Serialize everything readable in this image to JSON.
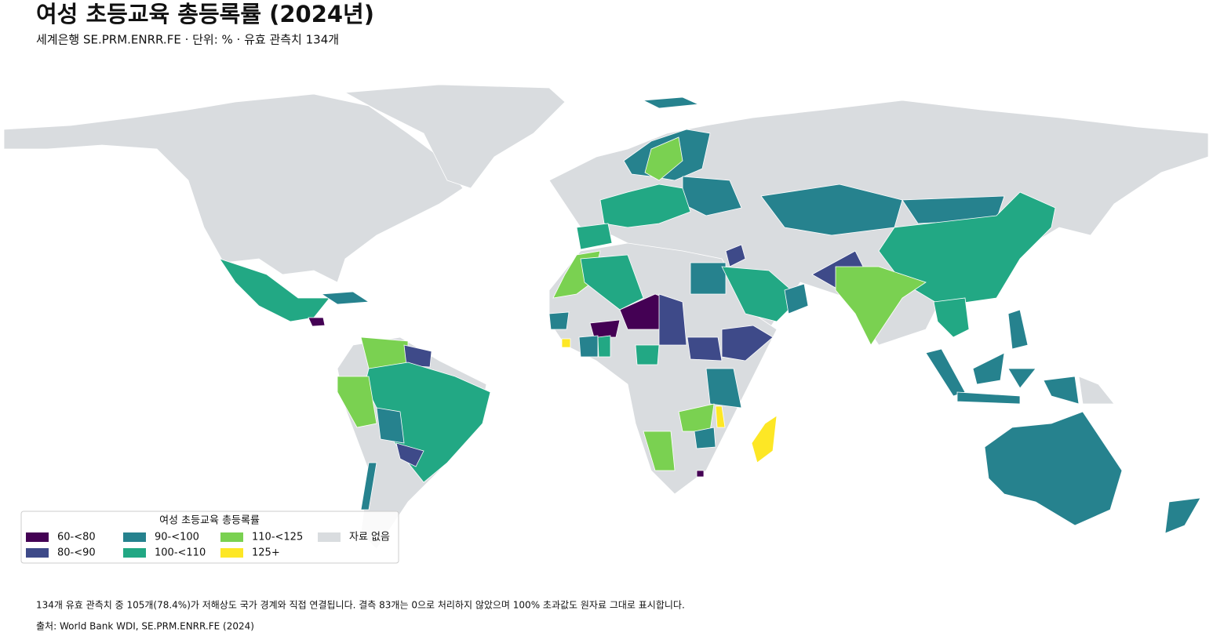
{
  "title": "여성 초등교육 총등록률 (2024년)",
  "subtitle": "세계은행 SE.PRM.ENRR.FE · 단위: % · 유효 관측치 134개",
  "legend": {
    "title": "여성 초등교육 총등록률",
    "items": [
      {
        "label": "60-<80",
        "color": "#440154"
      },
      {
        "label": "80-<90",
        "color": "#3e4a89"
      },
      {
        "label": "90-<100",
        "color": "#26828e"
      },
      {
        "label": "100-<110",
        "color": "#22a884"
      },
      {
        "label": "110-<125",
        "color": "#7ad151"
      },
      {
        "label": "125+",
        "color": "#fde725"
      },
      {
        "label": "자료 없음",
        "color": "#d9dcdf"
      }
    ]
  },
  "notes": [
    "134개 유효 관측치 중 105개(78.4%)가 저해상도 국가 경계와 직접 연결됩니다. 결측 83개는 0으로 처리하지 않았으며 100% 초과값도 원자료 그대로 표시합니다.",
    "출처: World Bank WDI, SE.PRM.ENRR.FE (2024)"
  ]
}
